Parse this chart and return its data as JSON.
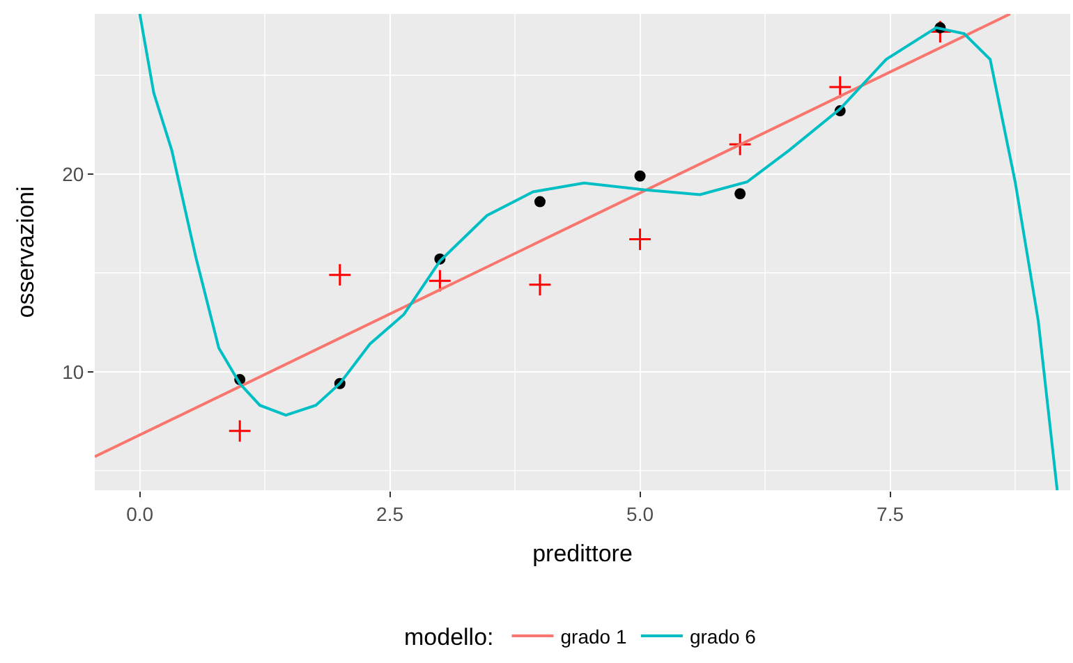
{
  "chart_data": {
    "type": "scatter",
    "xlabel": "predittore",
    "ylabel": "osservazioni",
    "legend_title": "modello:",
    "xlim": [
      -0.45,
      9.3
    ],
    "ylim": [
      4.0,
      28.1
    ],
    "xticks": [
      {
        "value": 0,
        "label": "0.0"
      },
      {
        "value": 2.5,
        "label": "2.5"
      },
      {
        "value": 5,
        "label": "5.0"
      },
      {
        "value": 7.5,
        "label": "7.5"
      }
    ],
    "yticks": [
      10,
      20
    ],
    "grid": true,
    "legend": "bottom",
    "series": [
      {
        "marker": "cross",
        "color": "#ff0000",
        "x": [
          1,
          2,
          3,
          4,
          5,
          6,
          7,
          8
        ],
        "values": [
          7.0,
          14.9,
          14.6,
          14.4,
          16.7,
          21.5,
          24.4,
          27.2
        ]
      },
      {
        "marker": "circle",
        "color": "#000000",
        "x": [
          1,
          2,
          3,
          4,
          5,
          6,
          7,
          8
        ],
        "values": [
          9.6,
          9.4,
          15.7,
          18.6,
          19.9,
          19.0,
          23.2,
          27.4
        ]
      },
      {
        "type": "line",
        "name": "grado 1",
        "color": "#f8766d",
        "x": [
          -0.45,
          8.7
        ],
        "values": [
          5.7,
          28.1
        ]
      },
      {
        "type": "line",
        "name": "grado 6",
        "color": "#00bfc4",
        "x": [
          0,
          0.14,
          0.32,
          0.56,
          0.79,
          1.0,
          1.2,
          1.46,
          1.76,
          2.0,
          2.3,
          2.64,
          3.0,
          3.47,
          3.93,
          4.44,
          5.04,
          5.6,
          6.07,
          6.49,
          7.0,
          7.46,
          7.96,
          8.24,
          8.5,
          8.75,
          8.98,
          9.17
        ],
        "values": [
          28.1,
          24.1,
          21.2,
          15.8,
          11.2,
          9.4,
          8.3,
          7.8,
          8.3,
          9.4,
          11.4,
          12.9,
          15.6,
          17.9,
          19.1,
          19.55,
          19.2,
          18.96,
          19.6,
          21.2,
          23.3,
          25.8,
          27.4,
          27.1,
          25.8,
          19.6,
          12.6,
          4.0
        ]
      }
    ]
  }
}
